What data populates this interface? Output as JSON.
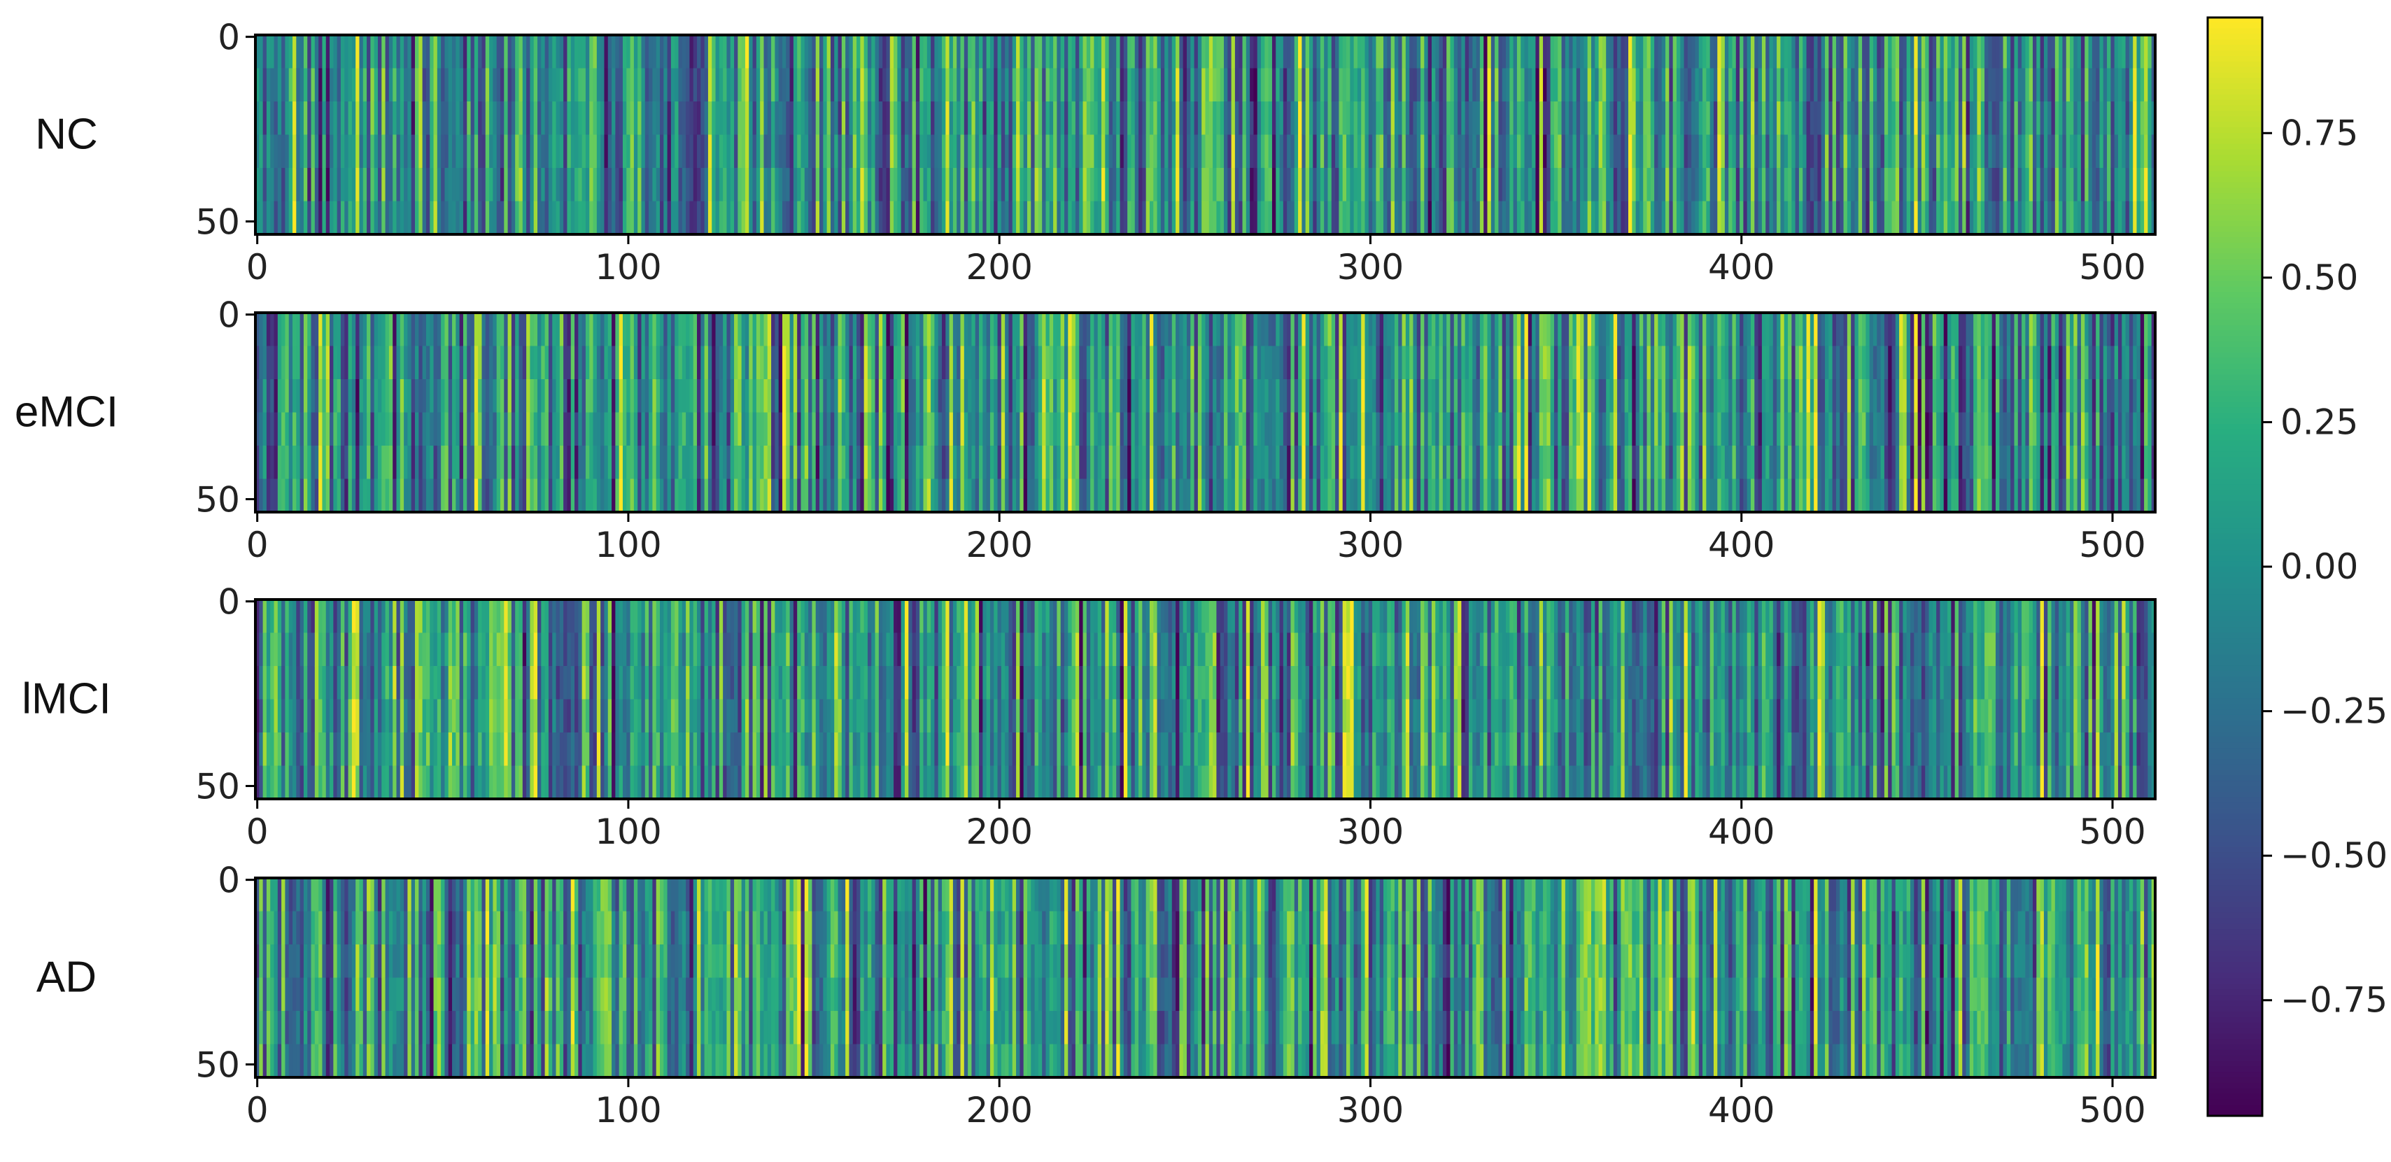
{
  "chart_data": {
    "type": "heatmap",
    "colormap": "viridis",
    "panels": [
      {
        "label": "NC",
        "seed": 11
      },
      {
        "label": "eMCI",
        "seed": 23
      },
      {
        "label": "lMCI",
        "seed": 37
      },
      {
        "label": "AD",
        "seed": 53
      }
    ],
    "n_columns": 512,
    "n_rows": 54,
    "x_ticks": [
      "0",
      "100",
      "200",
      "300",
      "400",
      "500"
    ],
    "x_tick_values": [
      0,
      100,
      200,
      300,
      400,
      500
    ],
    "y_ticks": [
      "0",
      "50"
    ],
    "y_tick_values": [
      0,
      50
    ],
    "colorbar": {
      "vmin": -0.95,
      "vmax": 0.95,
      "ticks": [
        "−0.75",
        "−0.50",
        "−0.25",
        "0.00",
        "0.25",
        "0.50",
        "0.75"
      ],
      "tick_values": [
        -0.75,
        -0.5,
        -0.25,
        0.0,
        0.25,
        0.5,
        0.75
      ]
    }
  }
}
